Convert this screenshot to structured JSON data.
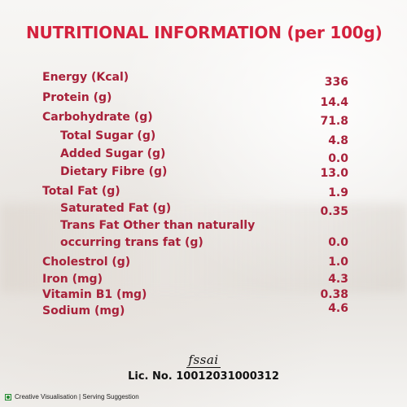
{
  "title": "NUTRITIONAL INFORMATION (per 100g)",
  "nutrients": [
    {
      "label": "Energy (Kcal)",
      "value": "336"
    },
    {
      "label": "Protein (g)",
      "value": "14.4"
    },
    {
      "label": "Carbohydrate  (g)",
      "value": "71.8"
    },
    {
      "label": "Total Sugar  (g)",
      "value": "4.8"
    },
    {
      "label": "Added Sugar  (g)",
      "value": "0.0"
    },
    {
      "label": "Dietary Fibre  (g)",
      "value": "13.0"
    },
    {
      "label": "Total Fat  (g)",
      "value": "1.9"
    },
    {
      "label": "Saturated Fat (g)",
      "value": "0.35"
    },
    {
      "label": "Trans Fat Other than naturally",
      "value": ""
    },
    {
      "label": "occurring trans fat (g)",
      "value": "0.0"
    },
    {
      "label": "Cholestrol  (g)",
      "value": "1.0"
    },
    {
      "label": "Iron  (mg)",
      "value": "4.3"
    },
    {
      "label": "Vitamin B1  (mg)",
      "value": "0.38"
    },
    {
      "label": "Sodium (mg)",
      "value": "4.6"
    }
  ],
  "fssai_logo": "fssai",
  "license": "Lic. No. 10012031000312",
  "footer": "Creative Visualisation | Serving Suggestion",
  "colors": {
    "title": "#d4213d",
    "text": "#a8213a",
    "veg_mark": "#1f8a2e"
  }
}
